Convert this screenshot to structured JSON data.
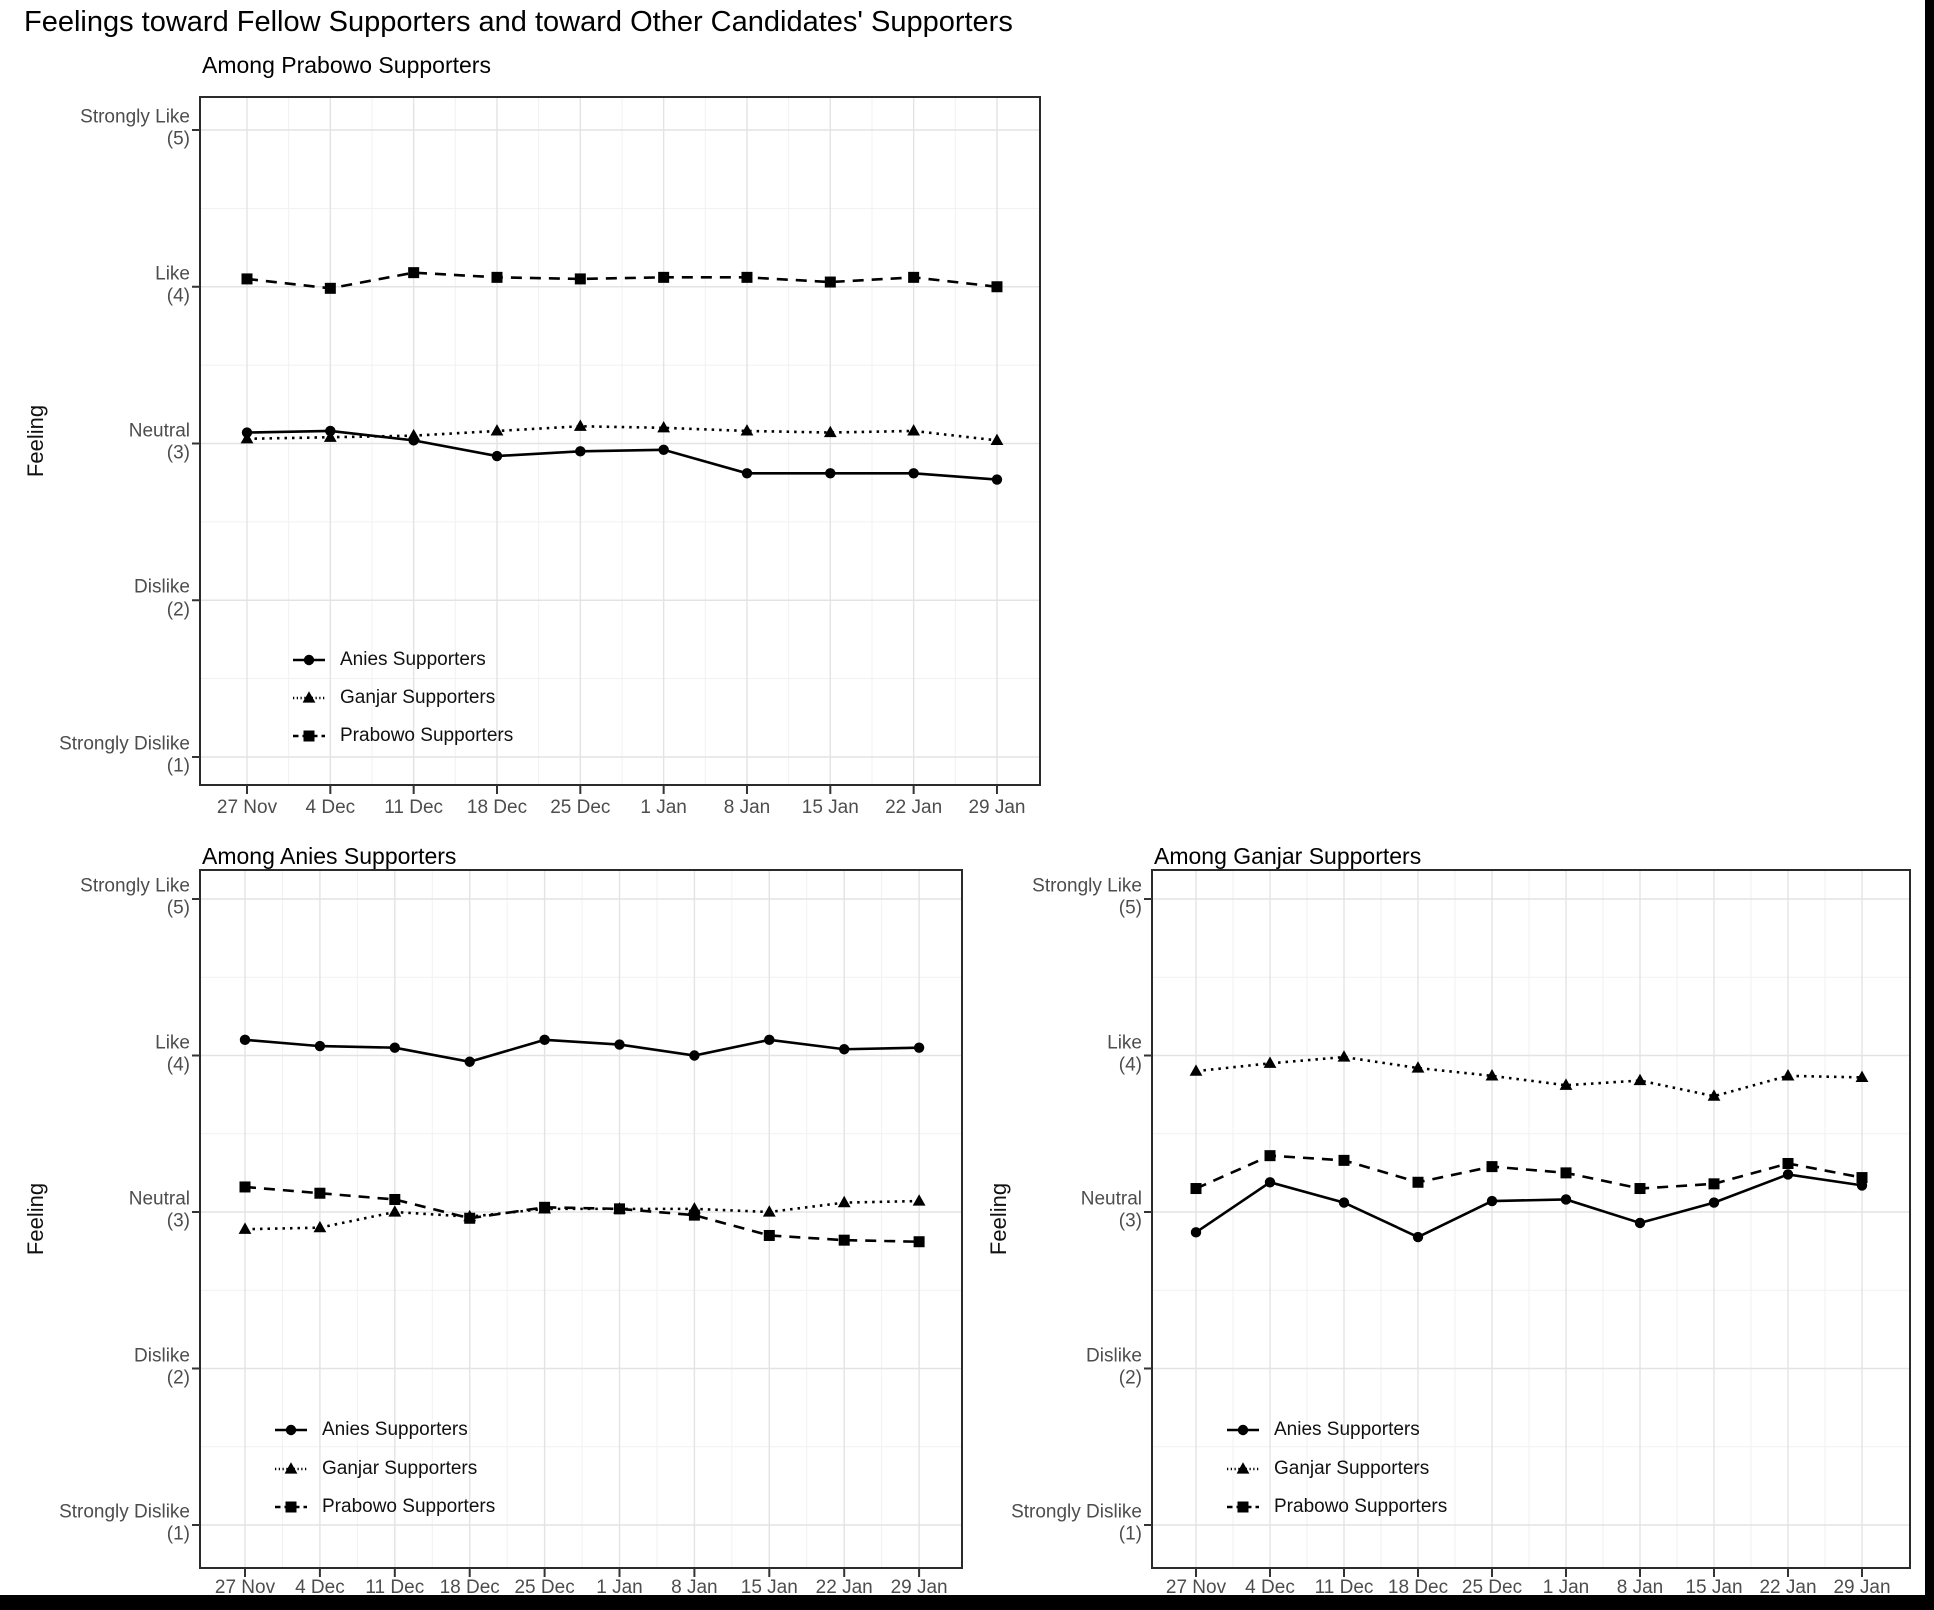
{
  "title": "Feelings toward Fellow Supporters and toward Other Candidates' Supporters",
  "y_axis": {
    "label": "Feeling",
    "ticks": [
      {
        "line1": "Strongly Like",
        "line2": "(5)",
        "value": 5
      },
      {
        "line1": "Like",
        "line2": "(4)",
        "value": 4
      },
      {
        "line1": "Neutral",
        "line2": "(3)",
        "value": 3
      },
      {
        "line1": "Dislike",
        "line2": "(2)",
        "value": 2
      },
      {
        "line1": "Strongly Dislike",
        "line2": "(1)",
        "value": 1
      }
    ]
  },
  "colors": {
    "series": "#000000",
    "grid_major": "#e3e3e3",
    "grid_minor": "#f1f1f1",
    "panel_border": "#2b2b2b",
    "axis_text": "#4d4d4d"
  },
  "chart_data": [
    {
      "type": "line",
      "title": "Among Prabowo Supporters",
      "xlabel": "",
      "ylabel": "Feeling",
      "ylim": [
        1,
        5
      ],
      "grid": true,
      "legend_position": "inside-bottom-left",
      "categories": [
        "27 Nov",
        "4 Dec",
        "11 Dec",
        "18 Dec",
        "25 Dec",
        "1 Jan",
        "8 Jan",
        "15 Jan",
        "22 Jan",
        "29 Jan"
      ],
      "series": [
        {
          "name": "Anies Supporters",
          "marker": "circle",
          "line": "solid",
          "values": [
            3.07,
            3.08,
            3.02,
            2.92,
            2.95,
            2.96,
            2.81,
            2.81,
            2.81,
            2.77
          ]
        },
        {
          "name": "Ganjar Supporters",
          "marker": "triangle",
          "line": "dotted",
          "values": [
            3.03,
            3.04,
            3.05,
            3.08,
            3.11,
            3.1,
            3.08,
            3.07,
            3.08,
            3.02
          ]
        },
        {
          "name": "Prabowo Supporters",
          "marker": "square",
          "line": "dashed",
          "values": [
            4.05,
            3.99,
            4.09,
            4.06,
            4.05,
            4.06,
            4.06,
            4.03,
            4.06,
            4.0
          ]
        }
      ]
    },
    {
      "type": "line",
      "title": "Among Anies Supporters",
      "xlabel": "",
      "ylabel": "Feeling",
      "ylim": [
        1,
        5
      ],
      "grid": true,
      "legend_position": "inside-bottom-left",
      "categories": [
        "27 Nov",
        "4 Dec",
        "11 Dec",
        "18 Dec",
        "25 Dec",
        "1 Jan",
        "8 Jan",
        "15 Jan",
        "22 Jan",
        "29 Jan"
      ],
      "series": [
        {
          "name": "Anies Supporters",
          "marker": "circle",
          "line": "solid",
          "values": [
            4.1,
            4.06,
            4.05,
            3.96,
            4.1,
            4.07,
            4.0,
            4.1,
            4.04,
            4.05
          ]
        },
        {
          "name": "Ganjar Supporters",
          "marker": "triangle",
          "line": "dotted",
          "values": [
            2.89,
            2.9,
            3.0,
            2.97,
            3.02,
            3.02,
            3.02,
            3.0,
            3.06,
            3.07
          ]
        },
        {
          "name": "Prabowo Supporters",
          "marker": "square",
          "line": "dashed",
          "values": [
            3.16,
            3.12,
            3.08,
            2.96,
            3.03,
            3.02,
            2.98,
            2.85,
            2.82,
            2.81
          ]
        }
      ]
    },
    {
      "type": "line",
      "title": "Among Ganjar Supporters",
      "xlabel": "",
      "ylabel": "Feeling",
      "ylim": [
        1,
        5
      ],
      "grid": true,
      "legend_position": "inside-bottom-left",
      "categories": [
        "27 Nov",
        "4 Dec",
        "11 Dec",
        "18 Dec",
        "25 Dec",
        "1 Jan",
        "8 Jan",
        "15 Jan",
        "22 Jan",
        "29 Jan"
      ],
      "series": [
        {
          "name": "Anies Supporters",
          "marker": "circle",
          "line": "solid",
          "values": [
            2.87,
            3.19,
            3.06,
            2.84,
            3.07,
            3.08,
            2.93,
            3.06,
            3.24,
            3.17
          ]
        },
        {
          "name": "Ganjar Supporters",
          "marker": "triangle",
          "line": "dotted",
          "values": [
            3.9,
            3.95,
            3.99,
            3.92,
            3.87,
            3.81,
            3.84,
            3.74,
            3.87,
            3.86
          ]
        },
        {
          "name": "Prabowo Supporters",
          "marker": "square",
          "line": "dashed",
          "values": [
            3.15,
            3.36,
            3.33,
            3.19,
            3.29,
            3.25,
            3.15,
            3.18,
            3.31,
            3.22
          ]
        }
      ]
    }
  ]
}
